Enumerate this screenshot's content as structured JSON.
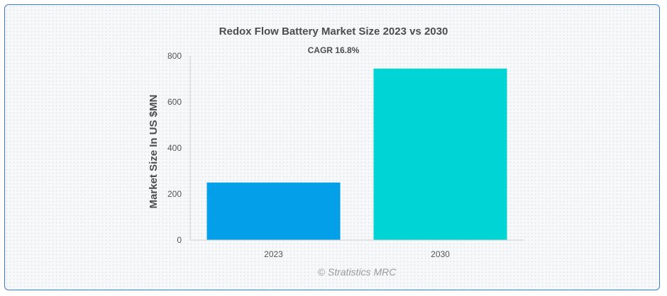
{
  "chart_data": {
    "type": "bar",
    "title": "Redox Flow Battery Market Size 2023 vs 2030",
    "subtitle": "CAGR 16.8%",
    "xlabel": "",
    "ylabel": "Market Size In US $MN",
    "categories": [
      "2023",
      "2030"
    ],
    "values": [
      250,
      745
    ],
    "ylim": [
      0,
      800
    ],
    "yticks": [
      "0",
      "200",
      "400",
      "600",
      "800"
    ],
    "bar_colors": [
      "#039fe9",
      "#00d4d4"
    ],
    "grid": false,
    "legend": "none"
  },
  "credit": "© Stratistics MRC"
}
